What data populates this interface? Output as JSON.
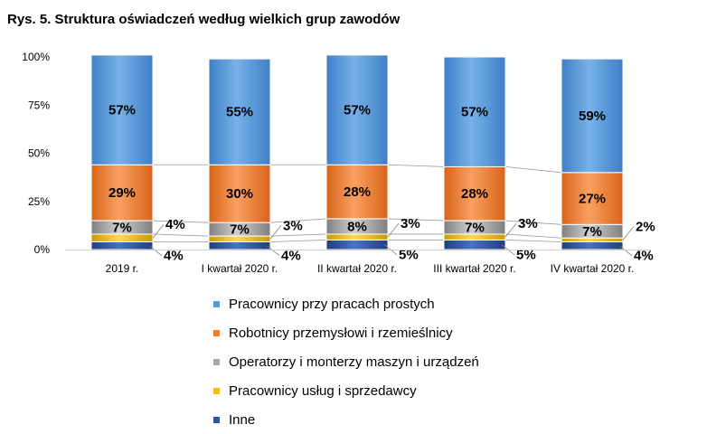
{
  "chart_data": {
    "type": "bar",
    "stacked": true,
    "percent_stacked": true,
    "title": "Rys. 5. Struktura oświadczeń według wielkich grup zawodów",
    "categories": [
      "2019 r.",
      "I kwartał 2020 r.",
      "II kwartał 2020 r.",
      "III kwartał 2020 r.",
      "IV kwartał 2020 r."
    ],
    "y_ticks": [
      "0%",
      "25%",
      "50%",
      "75%",
      "100%"
    ],
    "ylim": [
      0,
      100
    ],
    "series": [
      {
        "name": "Inne",
        "color": "#2f55a4",
        "values": [
          4,
          4,
          5,
          5,
          4
        ],
        "labels": [
          "4%",
          "4%",
          "5%",
          "5%",
          "4%"
        ]
      },
      {
        "name": "Pracownicy usług i sprzedawcy",
        "color": "#f2c000",
        "values": [
          4,
          3,
          3,
          3,
          2
        ],
        "labels": [
          "4%",
          "3%",
          "3%",
          "3%",
          "2%"
        ]
      },
      {
        "name": "Operatorzy i monterzy maszyn i urządzeń",
        "color": "#a6a6a6",
        "values": [
          7,
          7,
          8,
          7,
          7
        ],
        "labels": [
          "7%",
          "7%",
          "8%",
          "7%",
          "7%"
        ]
      },
      {
        "name": "Robotnicy przemysłowi i rzemieślnicy",
        "color": "#f07f2d",
        "values": [
          29,
          30,
          28,
          28,
          27
        ],
        "labels": [
          "29%",
          "30%",
          "28%",
          "28%",
          "27%"
        ]
      },
      {
        "name": "Pracownicy przy pracach prostych",
        "color": "#5b9bd5",
        "values": [
          57,
          55,
          57,
          57,
          59
        ],
        "labels": [
          "57%",
          "55%",
          "57%",
          "57%",
          "59%"
        ]
      }
    ],
    "legend": {
      "placement": "bottom",
      "items": [
        {
          "label": "Pracownicy przy pracach prostych",
          "color": "#5b9bd5"
        },
        {
          "label": "Robotnicy przemysłowi i rzemieślnicy",
          "color": "#f07f2d"
        },
        {
          "label": "Operatorzy i monterzy maszyn i urządzeń",
          "color": "#a6a6a6"
        },
        {
          "label": "Pracownicy usług i sprzedawcy",
          "color": "#f2c000"
        },
        {
          "label": "Inne",
          "color": "#2f55a4"
        }
      ]
    }
  }
}
